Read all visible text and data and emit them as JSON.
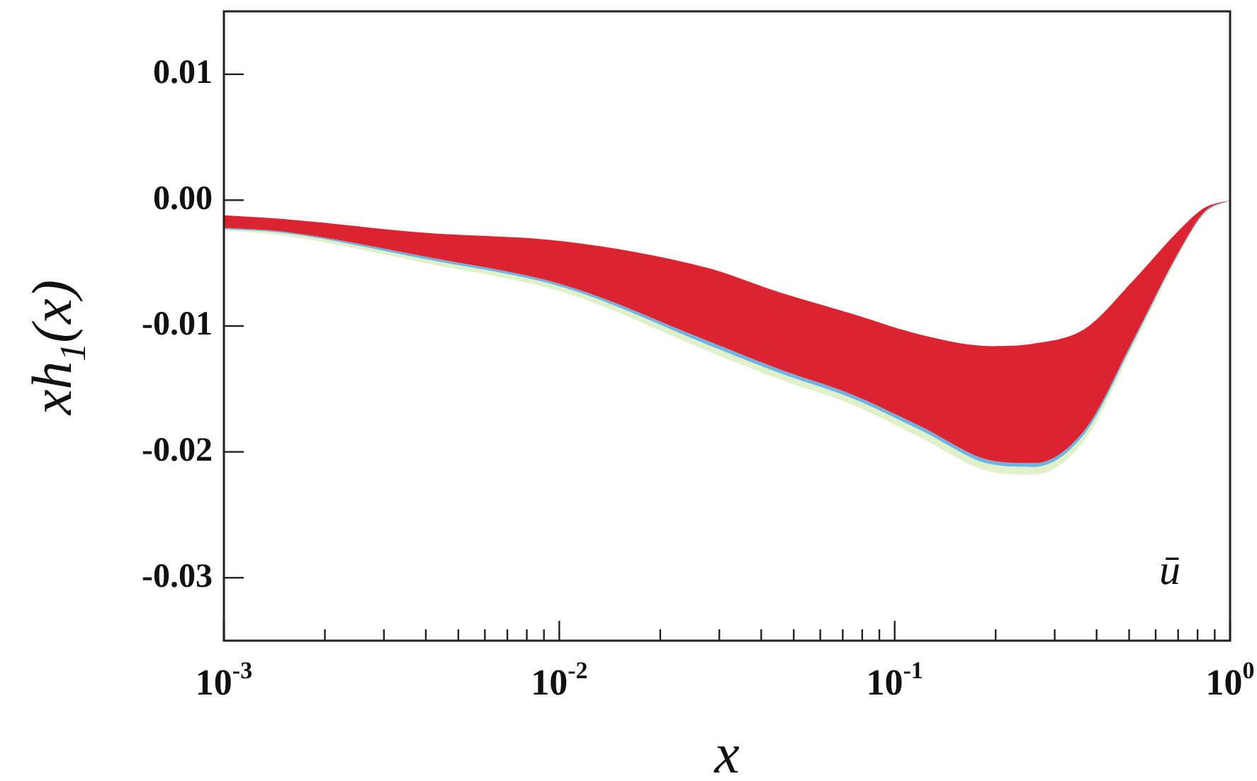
{
  "chart_data": {
    "type": "line",
    "xlabel": "x",
    "ylabel": "xh$_{1}$(x)",
    "log": "x",
    "grid": false,
    "legend": false,
    "x": [
      0.001,
      0.0015,
      0.004,
      0.0105,
      0.0278,
      0.045,
      0.074,
      0.12,
      0.195,
      0.26,
      0.37,
      0.51,
      0.71,
      0.84,
      1
    ],
    "series": [
      {
        "color": "#e0f0c8",
        "values": [
          null,
          null,
          null,
          null,
          null,
          null,
          null,
          null,
          null,
          null,
          null,
          null,
          null,
          null,
          null
        ],
        "upper": [
          -0.0023,
          -0.0026,
          -0.0047,
          -0.007,
          -0.0115,
          -0.0137,
          -0.0157,
          -0.0183,
          -0.021,
          -0.0212,
          -0.0185,
          -0.0115,
          -0.004,
          -0.001,
          0
        ],
        "lower": [
          -0.0024,
          -0.0028,
          -0.005,
          -0.0074,
          -0.012,
          -0.0142,
          -0.0162,
          -0.0189,
          -0.0216,
          -0.0218,
          -0.019,
          -0.0118,
          -0.0042,
          -0.0011,
          0
        ]
      },
      {
        "color": "#6cb4e4",
        "values": [
          null,
          null,
          null,
          null,
          null,
          null,
          null,
          null,
          null,
          null,
          null,
          null,
          null,
          null,
          null
        ],
        "upper": [
          -0.0022,
          -0.0025,
          -0.0045,
          -0.0068,
          -0.0112,
          -0.0134,
          -0.0154,
          -0.018,
          -0.0207,
          -0.0209,
          -0.0182,
          -0.0113,
          -0.0039,
          -0.0009,
          0
        ],
        "lower": [
          -0.0023,
          -0.0026,
          -0.0047,
          -0.007,
          -0.0115,
          -0.0137,
          -0.0157,
          -0.0183,
          -0.021,
          -0.0212,
          -0.0185,
          -0.0115,
          -0.004,
          -0.001,
          0
        ]
      },
      {
        "color": "#dc2430",
        "values": [
          null,
          null,
          null,
          null,
          null,
          null,
          null,
          null,
          null,
          null,
          null,
          null,
          null,
          null,
          null
        ],
        "upper": [
          -0.0012,
          -0.0015,
          -0.0026,
          -0.0033,
          -0.0054,
          -0.0073,
          -0.009,
          -0.0107,
          -0.0116,
          -0.0114,
          -0.0102,
          -0.0065,
          -0.0023,
          -0.0006,
          0
        ],
        "lower": [
          -0.0022,
          -0.0025,
          -0.0045,
          -0.0068,
          -0.0112,
          -0.0134,
          -0.0154,
          -0.018,
          -0.0207,
          -0.0209,
          -0.0182,
          -0.0113,
          -0.0039,
          -0.0009,
          0
        ]
      }
    ],
    "xlim": [
      0.001,
      1
    ],
    "xticks": [
      {
        "value": 0.001,
        "label": "10$^{-3}$"
      },
      {
        "value": 0.002,
        "label": null
      },
      {
        "value": 0.003,
        "label": null
      },
      {
        "value": 0.004,
        "label": null
      },
      {
        "value": 0.005,
        "label": null
      },
      {
        "value": 0.006,
        "label": null
      },
      {
        "value": 0.007,
        "label": null
      },
      {
        "value": 0.008,
        "label": null
      },
      {
        "value": 0.009,
        "label": null
      },
      {
        "value": 0.01,
        "label": "10$^{-2}$"
      },
      {
        "value": 0.02,
        "label": null
      },
      {
        "value": 0.03,
        "label": null
      },
      {
        "value": 0.04,
        "label": null
      },
      {
        "value": 0.05,
        "label": null
      },
      {
        "value": 0.06,
        "label": null
      },
      {
        "value": 0.07,
        "label": null
      },
      {
        "value": 0.08,
        "label": null
      },
      {
        "value": 0.09,
        "label": null
      },
      {
        "value": 0.1,
        "label": "10$^{-1}$"
      },
      {
        "value": 0.2,
        "label": null
      },
      {
        "value": 0.3,
        "label": null
      },
      {
        "value": 0.4,
        "label": null
      },
      {
        "value": 0.5,
        "label": null
      },
      {
        "value": 0.6,
        "label": null
      },
      {
        "value": 0.7,
        "label": null
      },
      {
        "value": 0.8,
        "label": null
      },
      {
        "value": 0.9,
        "label": null
      },
      {
        "value": 1,
        "label": "10$^{0}$"
      }
    ],
    "ylim": [
      -0.035,
      0.015
    ],
    "yticks": [
      -0.03,
      -0.02,
      -0.01,
      {
        "value": 0,
        "label": "0.00"
      },
      0.01
    ],
    "annotations": [
      "ū"
    ]
  }
}
